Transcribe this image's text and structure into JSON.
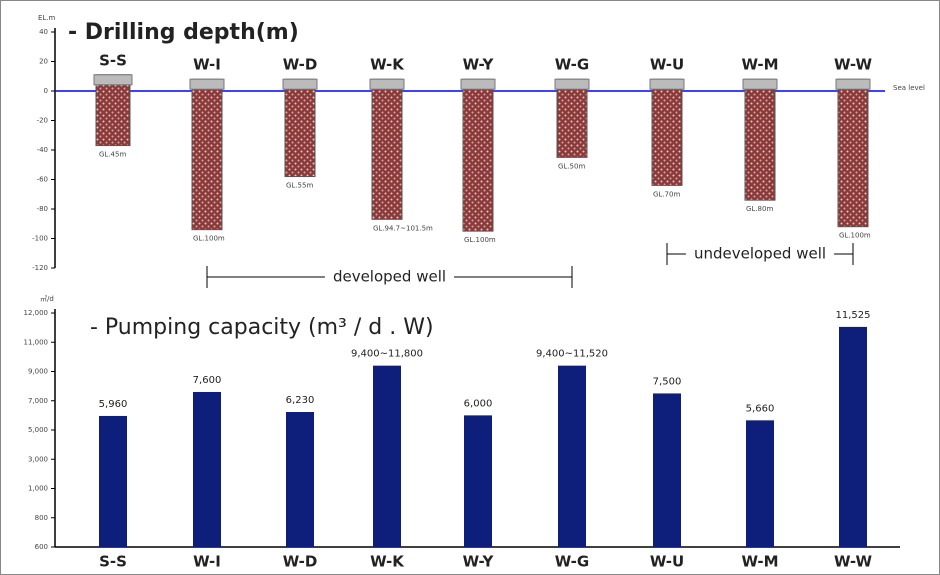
{
  "chart_data": [
    {
      "type": "range_bar",
      "title": "- Drilling depth(m)",
      "y_label": "EL.m",
      "categories": [
        "S-S",
        "W-I",
        "W-D",
        "W-K",
        "W-Y",
        "W-G",
        "W-U",
        "W-M",
        "W-W"
      ],
      "high": [
        11,
        8,
        8,
        8,
        8,
        8,
        8,
        8,
        8
      ],
      "low": [
        -37,
        -94,
        -58,
        -87,
        -95,
        -45,
        -64,
        -74,
        -92
      ],
      "depth_labels": [
        "GL.45m",
        "GL.100m",
        "GL.55m",
        "GL.94.7~101.5m",
        "GL.100m",
        "GL.50m",
        "GL.70m",
        "GL.80m",
        "GL.100m"
      ],
      "color": "#8b3a3a",
      "ylim": [
        -120,
        40
      ],
      "yticks": [
        40,
        20,
        0,
        -20,
        -40,
        -60,
        -80,
        -100,
        -120
      ],
      "reference_line": {
        "value": 0,
        "label": "Sea level",
        "color": "#0000ff"
      },
      "annotations": [
        "developed well",
        "undeveloped well"
      ]
    },
    {
      "type": "bar",
      "title": "- Pumping capacity (m³ / d . W)",
      "y_label": "㎥/d",
      "categories": [
        "S-S",
        "W-I",
        "W-D",
        "W-K",
        "W-Y",
        "W-G",
        "W-U",
        "W-M",
        "W-W"
      ],
      "values": [
        5960,
        7600,
        6230,
        9400,
        6000,
        9400,
        7500,
        5660,
        11525
      ],
      "value_labels": [
        "5,960",
        "7,600",
        "6,230",
        "9,400~11,800",
        "6,000",
        "9,400~11,520",
        "7,500",
        "5,660",
        "11,525"
      ],
      "color": "#0d1f7a",
      "ylim": [
        600,
        12000
      ],
      "yticks": [
        {
          "value": 12000,
          "label": "12,000"
        },
        {
          "value": 11000,
          "label": "11,000"
        },
        {
          "value": 9000,
          "label": "9,000"
        },
        {
          "value": 7000,
          "label": "7,000"
        },
        {
          "value": 5000,
          "label": "5,000"
        },
        {
          "value": 3000,
          "label": "3,000"
        },
        {
          "value": 1000,
          "label": "1,000"
        },
        800,
        600
      ]
    }
  ]
}
